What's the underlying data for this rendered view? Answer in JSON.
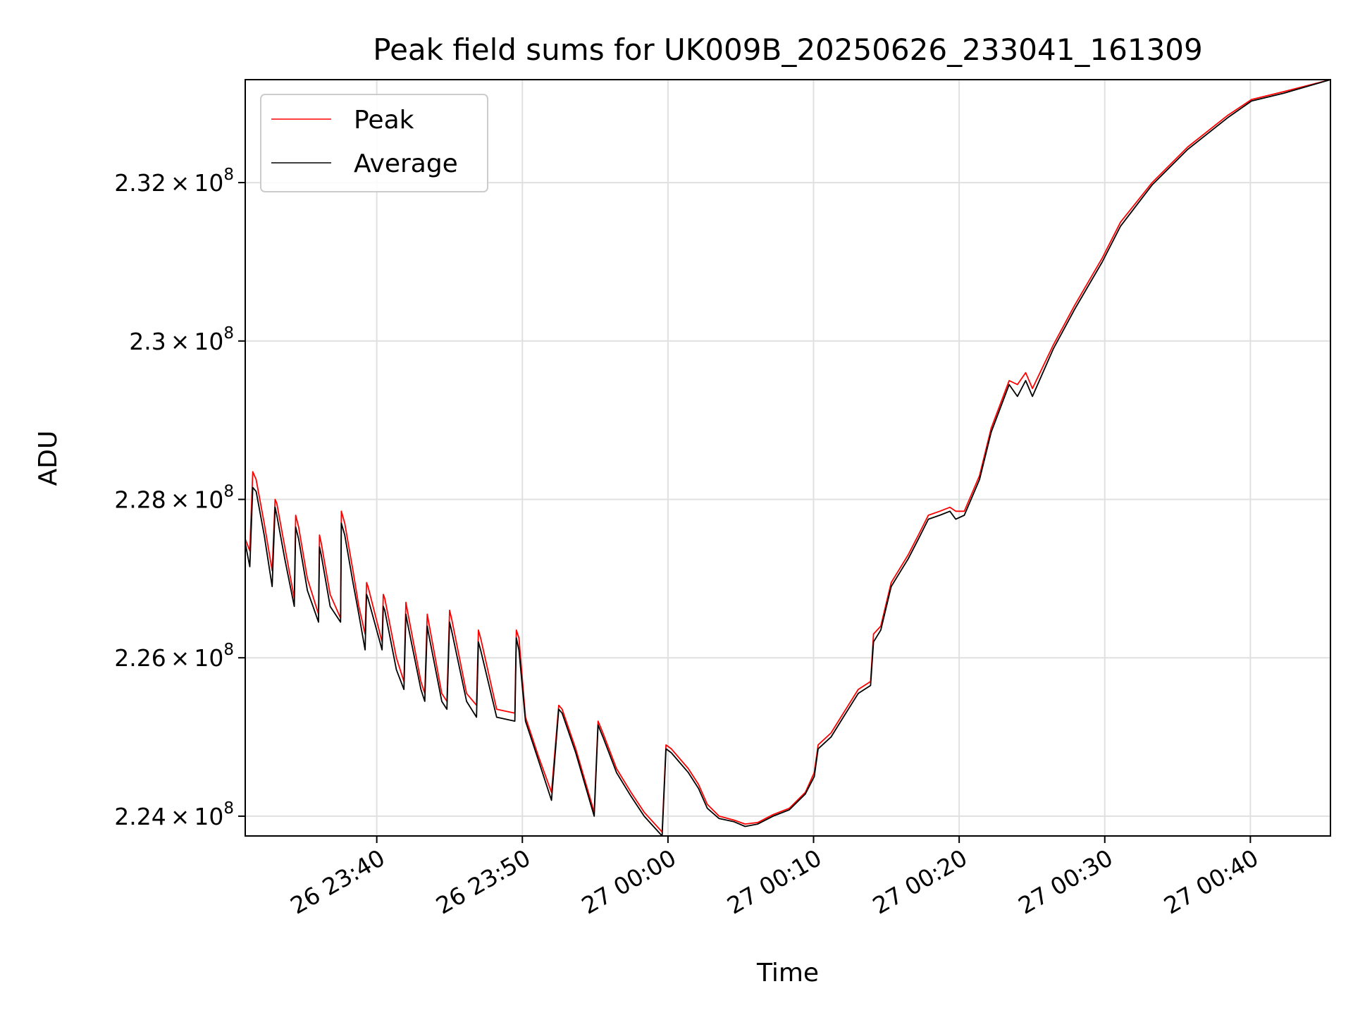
{
  "chart_data": {
    "type": "line",
    "title": "Peak field sums for UK009B_20250626_233041_161309",
    "xlabel": "Time",
    "ylabel": "ADU",
    "grid": true,
    "legend_position": "top-left",
    "x_range": [
      "26 23:30:58",
      "27 00:45:30"
    ],
    "y_range": [
      223.75,
      233.3
    ],
    "y_unit_multiplier": "1e6",
    "x_ticks": [
      {
        "label": "26 23:40",
        "value": "26 23:40:00"
      },
      {
        "label": "26 23:50",
        "value": "26 23:50:00"
      },
      {
        "label": "27 00:00",
        "value": "27 00:00:00"
      },
      {
        "label": "27 00:10",
        "value": "27 00:10:00"
      },
      {
        "label": "27 00:20",
        "value": "27 00:20:00"
      },
      {
        "label": "27 00:30",
        "value": "27 00:30:00"
      },
      {
        "label": "27 00:40",
        "value": "27 00:40:00"
      }
    ],
    "y_ticks": [
      {
        "mantissa": "2.24",
        "exp": "8",
        "value": 224
      },
      {
        "mantissa": "2.26",
        "exp": "8",
        "value": 226
      },
      {
        "mantissa": "2.28",
        "exp": "8",
        "value": 228
      },
      {
        "mantissa": "2.3",
        "exp": "8",
        "value": 230
      },
      {
        "mantissa": "2.32",
        "exp": "8",
        "value": 232
      }
    ],
    "series": [
      {
        "name": "Peak",
        "color": "#ff0000",
        "points": [
          [
            "26 23:30:58",
            227.5
          ],
          [
            "26 23:31:17",
            227.35
          ],
          [
            "26 23:31:29",
            228.35
          ],
          [
            "26 23:31:43",
            228.25
          ],
          [
            "26 23:32:16",
            227.7
          ],
          [
            "26 23:32:49",
            227.1
          ],
          [
            "26 23:33:01",
            228.0
          ],
          [
            "26 23:33:08",
            227.95
          ],
          [
            "26 23:33:41",
            227.4
          ],
          [
            "26 23:34:20",
            226.75
          ],
          [
            "26 23:34:26",
            227.8
          ],
          [
            "26 23:34:38",
            227.65
          ],
          [
            "26 23:35:14",
            227.0
          ],
          [
            "26 23:36:00",
            226.55
          ],
          [
            "26 23:36:04",
            227.55
          ],
          [
            "26 23:36:11",
            227.45
          ],
          [
            "26 23:36:48",
            226.8
          ],
          [
            "26 23:37:31",
            226.5
          ],
          [
            "26 23:37:34",
            227.85
          ],
          [
            "26 23:37:48",
            227.7
          ],
          [
            "26 23:38:22",
            227.1
          ],
          [
            "26 23:38:46",
            226.65
          ],
          [
            "26 23:39:12",
            226.3
          ],
          [
            "26 23:39:18",
            226.95
          ],
          [
            "26 23:39:24",
            226.9
          ],
          [
            "26 23:40:22",
            226.2
          ],
          [
            "26 23:40:27",
            226.8
          ],
          [
            "26 23:40:33",
            226.75
          ],
          [
            "26 23:41:21",
            226.0
          ],
          [
            "26 23:41:52",
            225.7
          ],
          [
            "26 23:42:00",
            226.7
          ],
          [
            "26 23:42:06",
            226.6
          ],
          [
            "26 23:43:02",
            225.7
          ],
          [
            "26 23:43:18",
            225.55
          ],
          [
            "26 23:43:28",
            226.55
          ],
          [
            "26 23:43:34",
            226.45
          ],
          [
            "26 23:44:28",
            225.55
          ],
          [
            "26 23:44:49",
            225.45
          ],
          [
            "26 23:45:00",
            226.6
          ],
          [
            "26 23:45:08",
            226.5
          ],
          [
            "26 23:46:10",
            225.55
          ],
          [
            "26 23:46:51",
            225.4
          ],
          [
            "26 23:46:59",
            226.35
          ],
          [
            "26 23:47:08",
            226.25
          ],
          [
            "26 23:48:14",
            225.35
          ],
          [
            "26 23:49:29",
            225.3
          ],
          [
            "26 23:49:35",
            226.35
          ],
          [
            "26 23:49:46",
            226.25
          ],
          [
            "26 23:50:13",
            225.25
          ],
          [
            "26 23:51:07",
            224.75
          ],
          [
            "26 23:52:00",
            224.3
          ],
          [
            "26 23:52:30",
            225.4
          ],
          [
            "26 23:52:44",
            225.35
          ],
          [
            "26 23:53:40",
            224.85
          ],
          [
            "26 23:54:56",
            224.05
          ],
          [
            "26 23:55:12",
            225.2
          ],
          [
            "26 23:55:32",
            225.05
          ],
          [
            "26 23:56:28",
            224.6
          ],
          [
            "26 23:57:28",
            224.3
          ],
          [
            "26 23:58:22",
            224.05
          ],
          [
            "26 23:59:36",
            223.8
          ],
          [
            "26 23:59:52",
            224.9
          ],
          [
            "27 00:00:14",
            224.85
          ],
          [
            "27 00:01:24",
            224.6
          ],
          [
            "27 00:02:06",
            224.4
          ],
          [
            "27 00:02:42",
            224.15
          ],
          [
            "27 00:03:31",
            224.0
          ],
          [
            "27 00:04:32",
            223.95
          ],
          [
            "27 00:05:18",
            223.9
          ],
          [
            "27 00:06:10",
            223.92
          ],
          [
            "27 00:07:13",
            224.02
          ],
          [
            "27 00:08:20",
            224.1
          ],
          [
            "27 00:09:26",
            224.3
          ],
          [
            "27 00:10:03",
            224.55
          ],
          [
            "27 00:10:19",
            224.9
          ],
          [
            "27 00:11:12",
            225.05
          ],
          [
            "27 00:12:13",
            225.35
          ],
          [
            "27 00:13:04",
            225.6
          ],
          [
            "27 00:13:55",
            225.7
          ],
          [
            "27 00:14:07",
            226.3
          ],
          [
            "27 00:14:37",
            226.4
          ],
          [
            "27 00:15:20",
            226.95
          ],
          [
            "27 00:16:30",
            227.3
          ],
          [
            "27 00:17:12",
            227.55
          ],
          [
            "27 00:17:53",
            227.8
          ],
          [
            "27 00:18:40",
            227.85
          ],
          [
            "27 00:19:22",
            227.9
          ],
          [
            "27 00:19:46",
            227.85
          ],
          [
            "27 00:20:21",
            227.85
          ],
          [
            "27 00:21:24",
            228.3
          ],
          [
            "27 00:22:12",
            228.9
          ],
          [
            "27 00:23:26",
            229.5
          ],
          [
            "27 00:24:00",
            229.45
          ],
          [
            "27 00:24:34",
            229.6
          ],
          [
            "27 00:25:02",
            229.4
          ],
          [
            "27 00:26:28",
            229.95
          ],
          [
            "27 00:27:56",
            230.45
          ],
          [
            "27 00:29:50",
            231.05
          ],
          [
            "27 00:31:05",
            231.5
          ],
          [
            "27 00:33:15",
            232.0
          ],
          [
            "27 00:35:42",
            232.45
          ],
          [
            "27 00:38:27",
            232.85
          ],
          [
            "27 00:40:05",
            233.05
          ],
          [
            "27 00:42:19",
            233.15
          ],
          [
            "27 00:45:30",
            233.3
          ]
        ]
      },
      {
        "name": "Average",
        "color": "#000000",
        "points": [
          [
            "26 23:30:58",
            227.45
          ],
          [
            "26 23:31:17",
            227.15
          ],
          [
            "26 23:31:29",
            228.15
          ],
          [
            "26 23:31:43",
            228.1
          ],
          [
            "26 23:32:16",
            227.55
          ],
          [
            "26 23:32:49",
            226.9
          ],
          [
            "26 23:33:01",
            227.9
          ],
          [
            "26 23:33:08",
            227.8
          ],
          [
            "26 23:33:41",
            227.25
          ],
          [
            "26 23:34:20",
            226.65
          ],
          [
            "26 23:34:26",
            227.65
          ],
          [
            "26 23:34:38",
            227.5
          ],
          [
            "26 23:35:14",
            226.85
          ],
          [
            "26 23:36:00",
            226.45
          ],
          [
            "26 23:36:04",
            227.4
          ],
          [
            "26 23:36:11",
            227.3
          ],
          [
            "26 23:36:48",
            226.65
          ],
          [
            "26 23:37:31",
            226.45
          ],
          [
            "26 23:37:34",
            227.7
          ],
          [
            "26 23:37:48",
            227.55
          ],
          [
            "26 23:38:22",
            226.95
          ],
          [
            "26 23:38:46",
            226.55
          ],
          [
            "26 23:39:12",
            226.1
          ],
          [
            "26 23:39:18",
            226.8
          ],
          [
            "26 23:39:24",
            226.75
          ],
          [
            "26 23:40:22",
            226.1
          ],
          [
            "26 23:40:27",
            226.65
          ],
          [
            "26 23:40:33",
            226.6
          ],
          [
            "26 23:41:21",
            225.85
          ],
          [
            "26 23:41:52",
            225.6
          ],
          [
            "26 23:42:00",
            226.55
          ],
          [
            "26 23:42:06",
            226.45
          ],
          [
            "26 23:43:02",
            225.6
          ],
          [
            "26 23:43:18",
            225.45
          ],
          [
            "26 23:43:28",
            226.4
          ],
          [
            "26 23:43:34",
            226.3
          ],
          [
            "26 23:44:28",
            225.45
          ],
          [
            "26 23:44:49",
            225.35
          ],
          [
            "26 23:45:00",
            226.45
          ],
          [
            "26 23:45:08",
            226.35
          ],
          [
            "26 23:46:10",
            225.45
          ],
          [
            "26 23:46:51",
            225.25
          ],
          [
            "26 23:46:59",
            226.2
          ],
          [
            "26 23:47:08",
            226.1
          ],
          [
            "26 23:48:14",
            225.25
          ],
          [
            "26 23:49:29",
            225.2
          ],
          [
            "26 23:49:35",
            226.25
          ],
          [
            "26 23:49:46",
            226.1
          ],
          [
            "26 23:50:13",
            225.2
          ],
          [
            "26 23:51:07",
            224.7
          ],
          [
            "26 23:52:00",
            224.2
          ],
          [
            "26 23:52:30",
            225.35
          ],
          [
            "26 23:52:44",
            225.3
          ],
          [
            "26 23:53:40",
            224.8
          ],
          [
            "26 23:54:56",
            224.0
          ],
          [
            "26 23:55:12",
            225.15
          ],
          [
            "26 23:55:32",
            225.0
          ],
          [
            "26 23:56:28",
            224.55
          ],
          [
            "26 23:57:28",
            224.25
          ],
          [
            "26 23:58:22",
            224.0
          ],
          [
            "26 23:59:36",
            223.75
          ],
          [
            "26 23:59:52",
            224.85
          ],
          [
            "27 00:00:14",
            224.8
          ],
          [
            "27 00:01:24",
            224.55
          ],
          [
            "27 00:02:06",
            224.35
          ],
          [
            "27 00:02:42",
            224.1
          ],
          [
            "27 00:03:31",
            223.97
          ],
          [
            "27 00:04:32",
            223.93
          ],
          [
            "27 00:05:18",
            223.87
          ],
          [
            "27 00:06:10",
            223.9
          ],
          [
            "27 00:07:13",
            224.0
          ],
          [
            "27 00:08:20",
            224.08
          ],
          [
            "27 00:09:26",
            224.28
          ],
          [
            "27 00:10:03",
            224.5
          ],
          [
            "27 00:10:19",
            224.85
          ],
          [
            "27 00:11:12",
            225.0
          ],
          [
            "27 00:12:13",
            225.3
          ],
          [
            "27 00:13:04",
            225.55
          ],
          [
            "27 00:13:55",
            225.65
          ],
          [
            "27 00:14:07",
            226.2
          ],
          [
            "27 00:14:37",
            226.35
          ],
          [
            "27 00:15:20",
            226.9
          ],
          [
            "27 00:16:30",
            227.25
          ],
          [
            "27 00:17:12",
            227.5
          ],
          [
            "27 00:17:53",
            227.75
          ],
          [
            "27 00:18:40",
            227.8
          ],
          [
            "27 00:19:22",
            227.85
          ],
          [
            "27 00:19:46",
            227.75
          ],
          [
            "27 00:20:21",
            227.8
          ],
          [
            "27 00:21:24",
            228.25
          ],
          [
            "27 00:22:12",
            228.85
          ],
          [
            "27 00:23:26",
            229.45
          ],
          [
            "27 00:24:00",
            229.3
          ],
          [
            "27 00:24:34",
            229.5
          ],
          [
            "27 00:25:02",
            229.3
          ],
          [
            "27 00:26:28",
            229.9
          ],
          [
            "27 00:27:56",
            230.4
          ],
          [
            "27 00:29:50",
            231.0
          ],
          [
            "27 00:31:05",
            231.45
          ],
          [
            "27 00:33:15",
            231.97
          ],
          [
            "27 00:35:42",
            232.42
          ],
          [
            "27 00:38:27",
            232.82
          ],
          [
            "27 00:40:05",
            233.03
          ],
          [
            "27 00:42:19",
            233.13
          ],
          [
            "27 00:45:30",
            233.3
          ]
        ]
      }
    ]
  }
}
